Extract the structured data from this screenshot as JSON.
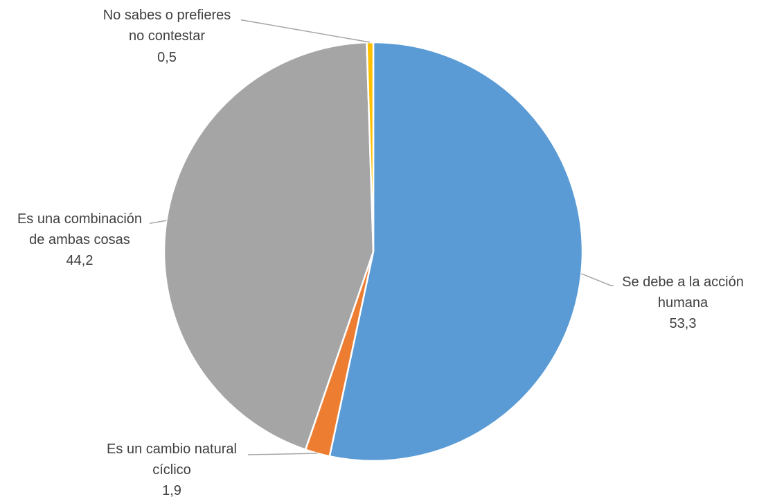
{
  "chart_data": {
    "type": "pie",
    "title": "",
    "slices": [
      {
        "label_lines": [
          "Se debe a la acción",
          "humana"
        ],
        "value_text": "53,3",
        "value": 53.3,
        "color": "#5B9BD5"
      },
      {
        "label_lines": [
          "Es un cambio natural",
          "cíclico"
        ],
        "value_text": "1,9",
        "value": 1.9,
        "color": "#ED7D31"
      },
      {
        "label_lines": [
          "Es una combinación",
          "de  ambas cosas"
        ],
        "value_text": "44,2",
        "value": 44.2,
        "color": "#A5A5A5"
      },
      {
        "label_lines": [
          "No sabes o prefieres",
          "no  contestar"
        ],
        "value_text": "0,5",
        "value": 0.5,
        "color": "#FFC000"
      }
    ]
  }
}
